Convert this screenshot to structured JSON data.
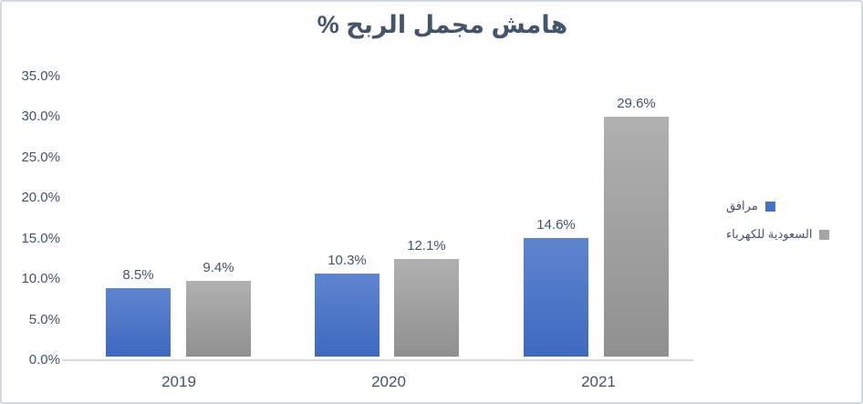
{
  "chart_data": {
    "type": "bar",
    "title": "هامش مجمل الربح %",
    "categories": [
      "2019",
      "2020",
      "2021"
    ],
    "series": [
      {
        "name": "مرافق",
        "color": "#4472C4",
        "values": [
          8.5,
          10.3,
          14.6
        ],
        "labels": [
          "8.5%",
          "10.3%",
          "14.6%"
        ]
      },
      {
        "name": "السعودية للكهرباء",
        "color": "#A5A5A5",
        "values": [
          9.4,
          12.1,
          29.6
        ],
        "labels": [
          "9.4%",
          "12.1%",
          "29.6%"
        ]
      }
    ],
    "ylim": [
      0,
      35
    ],
    "ytick_labels": [
      "35.0%",
      "30.0%",
      "25.0%",
      "20.0%",
      "15.0%",
      "10.0%",
      "5.0%",
      "0.0%"
    ],
    "grid": false,
    "legend_position": "right",
    "colors": {
      "text": "#44546A",
      "axis_line": "#D9D9D9",
      "frame_border": "#D2D9E1",
      "bar_blue": "#4472C4",
      "bar_gray": "#A5A5A5"
    }
  }
}
